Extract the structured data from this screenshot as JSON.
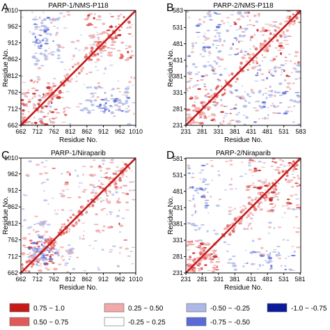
{
  "chart_data": [
    {
      "type": "heatmap",
      "panel_letter": "A",
      "title": "PARP-1/NMS-P118",
      "xlabel": "Residue No.",
      "ylabel": "Residue No.",
      "ticks": [
        "662",
        "712",
        "762",
        "812",
        "862",
        "912",
        "962",
        "1010"
      ],
      "tick_values": [
        662,
        712,
        762,
        812,
        862,
        912,
        962,
        1010
      ],
      "range": [
        662,
        1010
      ],
      "dense_regions": [
        {
          "x": [
            662,
            800
          ],
          "y": [
            662,
            760
          ],
          "level": "positive"
        },
        {
          "x": [
            700,
            780
          ],
          "y": [
            860,
            990
          ],
          "level": "negative"
        },
        {
          "x": [
            840,
            1000
          ],
          "y": [
            700,
            740
          ],
          "level": "negative"
        },
        {
          "x": [
            880,
            1000
          ],
          "y": [
            860,
            960
          ],
          "level": "positive"
        }
      ]
    },
    {
      "type": "heatmap",
      "panel_letter": "B",
      "title": "PARP-2/NMS-P118",
      "xlabel": "Residue No.",
      "ylabel": "Residue No.",
      "ticks": [
        "231",
        "281",
        "331",
        "381",
        "431",
        "481",
        "531",
        "583"
      ],
      "tick_values": [
        231,
        281,
        331,
        381,
        431,
        481,
        531,
        583
      ],
      "range": [
        231,
        583
      ],
      "dense_regions": [
        {
          "x": [
            231,
            400
          ],
          "y": [
            231,
            330
          ],
          "level": "positive"
        },
        {
          "x": [
            330,
            583
          ],
          "y": [
            231,
            340
          ],
          "level": "negative"
        },
        {
          "x": [
            380,
            583
          ],
          "y": [
            380,
            583
          ],
          "level": "positive"
        },
        {
          "x": [
            300,
            420
          ],
          "y": [
            440,
            583
          ],
          "level": "negative"
        }
      ]
    },
    {
      "type": "heatmap",
      "panel_letter": "C",
      "title": "PARP-1/Niraparib",
      "xlabel": "Residue No.",
      "ylabel": "Residue No.",
      "ticks": [
        "662",
        "712",
        "762",
        "812",
        "862",
        "912",
        "962",
        "1010"
      ],
      "tick_values": [
        662,
        712,
        762,
        812,
        862,
        912,
        962,
        1010
      ],
      "range": [
        662,
        1010
      ],
      "dense_regions": [
        {
          "x": [
            662,
            790
          ],
          "y": [
            662,
            760
          ],
          "level": "positive"
        },
        {
          "x": [
            680,
            820
          ],
          "y": [
            700,
            740
          ],
          "level": "negative"
        },
        {
          "x": [
            760,
            1000
          ],
          "y": [
            880,
            1000
          ],
          "level": "positive"
        }
      ]
    },
    {
      "type": "heatmap",
      "panel_letter": "D",
      "title": "PARP-2/Niraparib",
      "xlabel": "Residue No.",
      "ylabel": "Residue No.",
      "ticks": [
        "231",
        "281",
        "331",
        "381",
        "431",
        "481",
        "531",
        "581"
      ],
      "tick_values": [
        231,
        281,
        331,
        381,
        431,
        481,
        531,
        581
      ],
      "range": [
        231,
        583
      ],
      "dense_regions": [
        {
          "x": [
            231,
            330
          ],
          "y": [
            231,
            300
          ],
          "level": "positive"
        },
        {
          "x": [
            360,
            560
          ],
          "y": [
            240,
            300
          ],
          "level": "negative"
        },
        {
          "x": [
            420,
            583
          ],
          "y": [
            420,
            583
          ],
          "level": "positive"
        }
      ]
    }
  ],
  "legend": {
    "entries": [
      {
        "label": "0.75  ~ 1.0",
        "color": "#c41a1a"
      },
      {
        "label": "0.25  ~ 0.50",
        "color": "#f0a8a8"
      },
      {
        "label": "-0.50 ~ -0.25",
        "color": "#aeb8e8"
      },
      {
        "label": "-1.0  ~ -0.75",
        "color": "#0a1a9a"
      },
      {
        "label": "0.50  ~ 0.75",
        "color": "#e05a5a"
      },
      {
        "label": "-0.25 ~ 0.25",
        "color": "#ffffff"
      },
      {
        "label": "-0.75 ~ -0.50",
        "color": "#5a6ad8"
      }
    ]
  },
  "colors": {
    "diagonal": "#c41a1a",
    "positive_strong": "#c41a1a",
    "positive_mid": "#e05a5a",
    "positive_weak": "#f0a8a8",
    "negative_weak": "#aeb8e8",
    "negative_mid": "#5a6ad8",
    "negative_strong": "#0a1a9a"
  }
}
